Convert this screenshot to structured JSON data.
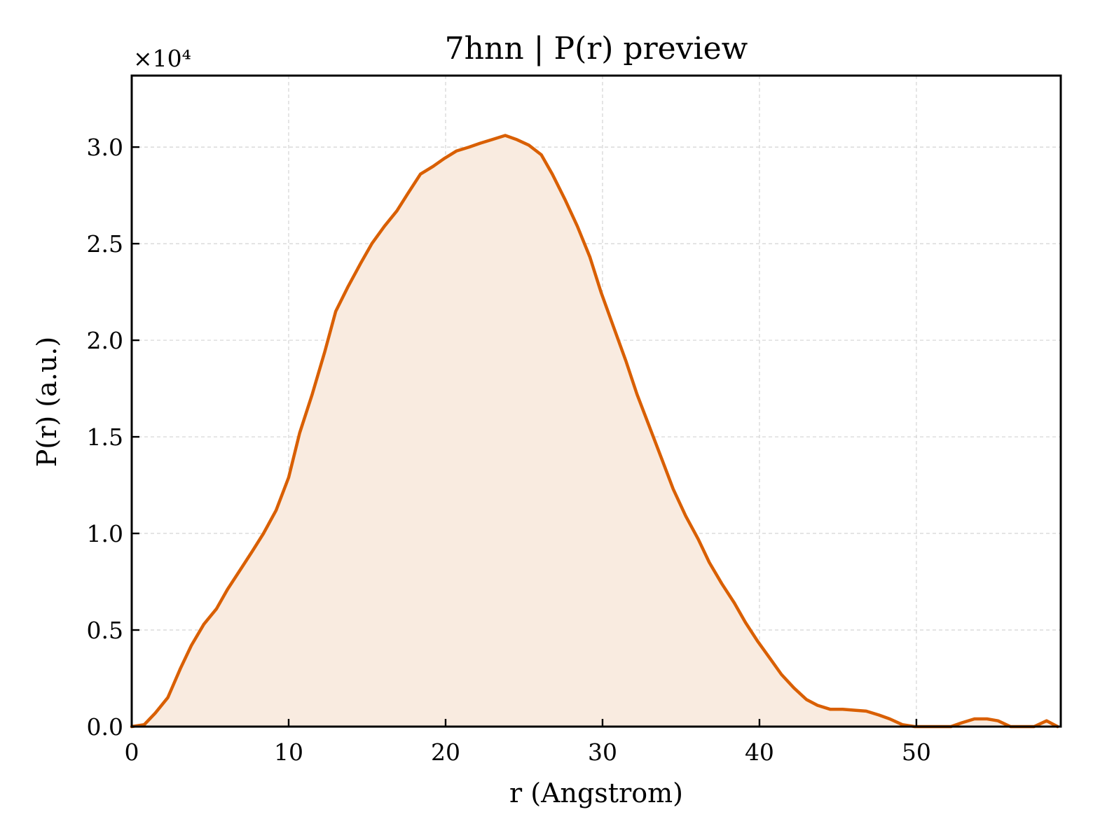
{
  "chart_data": {
    "type": "area",
    "title": "7hnn | P(r) preview",
    "xlabel": "r (Angstrom)",
    "ylabel": "P(r) (a.u.)",
    "y_multiplier_label": "×10⁴",
    "xlim": [
      0,
      59.2
    ],
    "ylim": [
      0,
      3.37
    ],
    "xticks": [
      0,
      10,
      20,
      30,
      40,
      50
    ],
    "yticks": [
      0.0,
      0.5,
      1.0,
      1.5,
      2.0,
      2.5,
      3.0
    ],
    "xtick_labels": [
      "0",
      "10",
      "20",
      "30",
      "40",
      "50"
    ],
    "ytick_labels": [
      "0.0",
      "0.5",
      "1.0",
      "1.5",
      "2.0",
      "2.5",
      "3.0"
    ],
    "grid": true,
    "line_color": "#d95f02",
    "fill_color": "#f9ebe0",
    "series": [
      {
        "x": [
          0.0,
          0.8,
          1.5,
          2.3,
          3.1,
          3.8,
          4.6,
          5.4,
          6.1,
          6.9,
          7.7,
          8.4,
          9.2,
          10.0,
          10.7,
          11.5,
          12.3,
          13.0,
          13.8,
          14.6,
          15.3,
          16.1,
          16.9,
          17.6,
          18.4,
          19.2,
          19.9,
          20.7,
          21.5,
          22.2,
          23.0,
          23.8,
          24.5,
          25.3,
          26.1,
          26.8,
          27.6,
          28.4,
          29.2,
          29.9,
          30.7,
          31.5,
          32.2,
          33.0,
          33.8,
          34.5,
          35.3,
          36.1,
          36.8,
          37.6,
          38.4,
          39.1,
          39.9,
          40.7,
          41.4,
          42.2,
          43.0,
          43.7,
          44.5,
          45.3,
          46.0,
          46.8,
          47.6,
          48.3,
          49.1,
          49.9,
          50.6,
          51.4,
          52.2,
          52.9,
          53.7,
          54.5,
          55.2,
          56.0,
          56.8,
          57.5,
          58.3,
          59.0
        ],
        "y": [
          0.0,
          0.01,
          0.07,
          0.15,
          0.3,
          0.42,
          0.53,
          0.61,
          0.71,
          0.81,
          0.91,
          1.0,
          1.12,
          1.29,
          1.52,
          1.72,
          1.94,
          2.15,
          2.28,
          2.4,
          2.5,
          2.59,
          2.67,
          2.76,
          2.86,
          2.9,
          2.94,
          2.98,
          3.0,
          3.02,
          3.04,
          3.06,
          3.04,
          3.01,
          2.96,
          2.86,
          2.73,
          2.59,
          2.43,
          2.25,
          2.07,
          1.89,
          1.72,
          1.55,
          1.38,
          1.23,
          1.09,
          0.97,
          0.85,
          0.74,
          0.64,
          0.54,
          0.44,
          0.35,
          0.27,
          0.2,
          0.14,
          0.11,
          0.09,
          0.09,
          0.085,
          0.08,
          0.06,
          0.04,
          0.01,
          -0.02,
          -0.04,
          -0.05,
          -0.04,
          0.02,
          0.04,
          0.04,
          0.03,
          0.0,
          -0.02,
          -0.03,
          0.03,
          0.0
        ]
      }
    ]
  }
}
